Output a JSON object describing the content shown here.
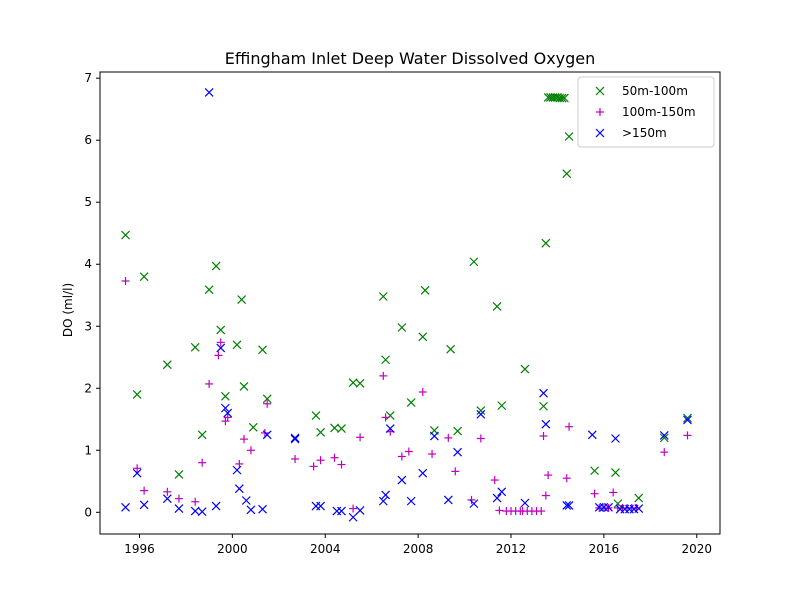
{
  "chart_data": {
    "type": "scatter",
    "title": "Effingham Inlet Deep Water Dissolved Oxygen",
    "xlabel": "",
    "ylabel": "DO (ml/l)",
    "xlim": [
      1994.3,
      2021.0
    ],
    "ylim": [
      -0.35,
      7.1
    ],
    "x_ticks": [
      1996,
      2000,
      2004,
      2008,
      2012,
      2016,
      2020
    ],
    "y_ticks": [
      0,
      1,
      2,
      3,
      4,
      5,
      6,
      7
    ],
    "legend": "top-right",
    "series": [
      {
        "name": "50m-100m",
        "marker": "x",
        "color": "#008000",
        "points": [
          [
            1995.4,
            4.47
          ],
          [
            1995.9,
            1.9
          ],
          [
            1996.2,
            3.8
          ],
          [
            1997.2,
            2.38
          ],
          [
            1997.7,
            0.61
          ],
          [
            1998.4,
            2.66
          ],
          [
            1998.7,
            1.25
          ],
          [
            1999.0,
            3.59
          ],
          [
            1999.3,
            3.97
          ],
          [
            1999.5,
            2.94
          ],
          [
            1999.7,
            1.87
          ],
          [
            2000.2,
            2.7
          ],
          [
            2000.4,
            3.43
          ],
          [
            2000.5,
            2.03
          ],
          [
            2000.9,
            1.37
          ],
          [
            2001.3,
            2.62
          ],
          [
            2001.5,
            1.83
          ],
          [
            2003.6,
            1.56
          ],
          [
            2003.8,
            1.29
          ],
          [
            2004.4,
            1.36
          ],
          [
            2004.7,
            1.35
          ],
          [
            2005.2,
            2.09
          ],
          [
            2005.5,
            2.08
          ],
          [
            2006.5,
            3.48
          ],
          [
            2006.6,
            2.46
          ],
          [
            2006.8,
            1.56
          ],
          [
            2007.3,
            2.98
          ],
          [
            2007.7,
            1.77
          ],
          [
            2008.2,
            2.83
          ],
          [
            2008.3,
            3.58
          ],
          [
            2008.7,
            1.32
          ],
          [
            2009.4,
            2.63
          ],
          [
            2009.7,
            1.31
          ],
          [
            2010.4,
            4.04
          ],
          [
            2010.7,
            1.64
          ],
          [
            2011.4,
            3.32
          ],
          [
            2011.6,
            1.72
          ],
          [
            2012.6,
            2.31
          ],
          [
            2013.4,
            1.71
          ],
          [
            2013.5,
            4.34
          ],
          [
            2013.6,
            6.69
          ],
          [
            2013.7,
            6.69
          ],
          [
            2013.8,
            6.69
          ],
          [
            2013.9,
            6.69
          ],
          [
            2014.0,
            6.69
          ],
          [
            2014.1,
            6.68
          ],
          [
            2014.2,
            6.68
          ],
          [
            2014.3,
            6.68
          ],
          [
            2014.4,
            5.46
          ],
          [
            2014.5,
            6.06
          ],
          [
            2015.6,
            0.67
          ],
          [
            2016.5,
            0.64
          ],
          [
            2016.6,
            0.14
          ],
          [
            2017.5,
            0.23
          ],
          [
            2018.6,
            1.2
          ],
          [
            2019.6,
            1.52
          ]
        ]
      },
      {
        "name": "100m-150m",
        "marker": "+",
        "color": "#bf00bf",
        "points": [
          [
            1995.4,
            3.73
          ],
          [
            1995.9,
            0.71
          ],
          [
            1996.2,
            0.35
          ],
          [
            1997.2,
            0.33
          ],
          [
            1997.7,
            0.22
          ],
          [
            1998.4,
            0.17
          ],
          [
            1998.7,
            0.8
          ],
          [
            1999.0,
            2.07
          ],
          [
            1999.4,
            2.53
          ],
          [
            1999.5,
            2.74
          ],
          [
            1999.7,
            1.47
          ],
          [
            1999.8,
            1.53
          ],
          [
            2000.3,
            0.78
          ],
          [
            2000.5,
            1.18
          ],
          [
            2000.8,
            1.0
          ],
          [
            2001.4,
            1.28
          ],
          [
            2001.5,
            1.75
          ],
          [
            2002.7,
            0.86
          ],
          [
            2003.5,
            0.74
          ],
          [
            2003.8,
            0.84
          ],
          [
            2004.4,
            0.88
          ],
          [
            2004.7,
            0.77
          ],
          [
            2005.2,
            0.06
          ],
          [
            2005.5,
            1.21
          ],
          [
            2006.5,
            2.2
          ],
          [
            2006.6,
            1.53
          ],
          [
            2006.8,
            1.3
          ],
          [
            2007.3,
            0.9
          ],
          [
            2007.6,
            0.98
          ],
          [
            2008.2,
            1.94
          ],
          [
            2008.6,
            0.94
          ],
          [
            2009.3,
            1.2
          ],
          [
            2009.6,
            0.66
          ],
          [
            2010.3,
            0.2
          ],
          [
            2010.7,
            1.19
          ],
          [
            2011.3,
            0.52
          ],
          [
            2011.5,
            0.03
          ],
          [
            2011.8,
            0.02
          ],
          [
            2012.0,
            0.02
          ],
          [
            2012.2,
            0.02
          ],
          [
            2012.4,
            0.02
          ],
          [
            2012.5,
            0.02
          ],
          [
            2012.7,
            0.02
          ],
          [
            2012.9,
            0.02
          ],
          [
            2013.1,
            0.02
          ],
          [
            2013.3,
            0.02
          ],
          [
            2013.5,
            0.27
          ],
          [
            2013.6,
            0.6
          ],
          [
            2013.4,
            1.23
          ],
          [
            2014.4,
            0.55
          ],
          [
            2014.5,
            1.38
          ],
          [
            2015.6,
            0.3
          ],
          [
            2015.8,
            0.07
          ],
          [
            2016.0,
            0.07
          ],
          [
            2016.2,
            0.07
          ],
          [
            2016.4,
            0.32
          ],
          [
            2016.6,
            0.07
          ],
          [
            2016.8,
            0.07
          ],
          [
            2017.0,
            0.07
          ],
          [
            2017.2,
            0.07
          ],
          [
            2017.4,
            0.07
          ],
          [
            2018.6,
            0.97
          ],
          [
            2019.6,
            1.24
          ]
        ]
      },
      {
        "name": ">150m",
        "marker": "x",
        "color": "#0000ff",
        "points": [
          [
            1995.4,
            0.08
          ],
          [
            1995.9,
            0.63
          ],
          [
            1996.2,
            0.12
          ],
          [
            1997.2,
            0.22
          ],
          [
            1997.7,
            0.06
          ],
          [
            1998.4,
            0.02
          ],
          [
            1998.7,
            0.01
          ],
          [
            1999.0,
            6.77
          ],
          [
            1999.3,
            0.1
          ],
          [
            1999.5,
            2.65
          ],
          [
            1999.7,
            1.68
          ],
          [
            1999.8,
            1.6
          ],
          [
            2000.2,
            0.68
          ],
          [
            2000.3,
            0.38
          ],
          [
            2000.6,
            0.19
          ],
          [
            2000.8,
            0.04
          ],
          [
            2001.3,
            0.05
          ],
          [
            2001.5,
            1.25
          ],
          [
            2002.7,
            1.2
          ],
          [
            2002.7,
            1.18
          ],
          [
            2003.6,
            0.1
          ],
          [
            2003.8,
            0.1
          ],
          [
            2004.5,
            0.02
          ],
          [
            2004.7,
            0.02
          ],
          [
            2005.2,
            -0.08
          ],
          [
            2005.5,
            0.03
          ],
          [
            2006.5,
            0.18
          ],
          [
            2006.6,
            0.28
          ],
          [
            2006.8,
            1.35
          ],
          [
            2007.3,
            0.52
          ],
          [
            2007.7,
            0.18
          ],
          [
            2008.2,
            0.63
          ],
          [
            2008.7,
            1.23
          ],
          [
            2009.3,
            0.2
          ],
          [
            2009.7,
            0.97
          ],
          [
            2010.4,
            0.14
          ],
          [
            2010.7,
            1.58
          ],
          [
            2011.4,
            0.23
          ],
          [
            2011.6,
            0.33
          ],
          [
            2012.6,
            0.15
          ],
          [
            2013.4,
            1.92
          ],
          [
            2013.5,
            1.42
          ],
          [
            2014.4,
            0.11
          ],
          [
            2014.5,
            0.11
          ],
          [
            2015.5,
            1.25
          ],
          [
            2015.8,
            0.08
          ],
          [
            2016.0,
            0.08
          ],
          [
            2016.2,
            0.08
          ],
          [
            2016.5,
            1.19
          ],
          [
            2016.7,
            0.05
          ],
          [
            2016.9,
            0.05
          ],
          [
            2017.1,
            0.05
          ],
          [
            2017.3,
            0.05
          ],
          [
            2017.5,
            0.06
          ],
          [
            2018.6,
            1.24
          ],
          [
            2019.6,
            1.49
          ]
        ]
      }
    ]
  }
}
